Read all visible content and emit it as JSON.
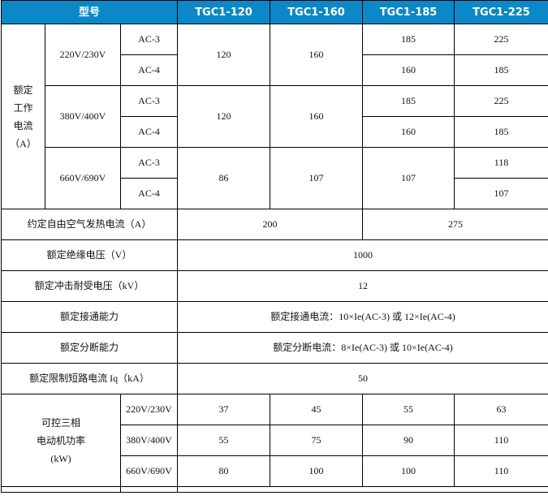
{
  "header": {
    "model_label": "型号",
    "models": [
      "TGC1-120",
      "TGC1-160",
      "TGC1-185",
      "TGC1-225"
    ]
  },
  "rated_current": {
    "label": "额定工作电流（A）",
    "label_lines": [
      "额定",
      "工作",
      "电流",
      "（A）"
    ],
    "groups": [
      {
        "voltage": "220V/230V",
        "ac3": "AC-3",
        "ac4": "AC-4",
        "m120": "120",
        "m160": "160",
        "m185": [
          "185",
          "160"
        ],
        "m225": [
          "225",
          "185"
        ]
      },
      {
        "voltage": "380V/400V",
        "ac3": "AC-3",
        "ac4": "AC-4",
        "m120": "120",
        "m160": "160",
        "m185": [
          "185",
          "160"
        ],
        "m225": [
          "225",
          "185"
        ]
      },
      {
        "voltage": "660V/690V",
        "ac3": "AC-3",
        "ac4": "AC-4",
        "m120": "86",
        "m160": "107",
        "m185": "107",
        "m225": [
          "118",
          "107"
        ]
      }
    ]
  },
  "thermal": {
    "label": "约定自由空气发热电流（A）",
    "v1": "200",
    "v2": "275"
  },
  "rows": [
    {
      "label": "额定绝缘电压（V）",
      "value": "1000"
    },
    {
      "label": "额定冲击耐受电压（kV）",
      "value": "12"
    },
    {
      "label": "额定接通能力",
      "value": "额定接通电流：10×Ie(AC-3) 或 12×Ie(AC-4)"
    },
    {
      "label": "额定分断能力",
      "value": "额定分断电流：8×Ie(AC-3) 或 10×Ie(AC-4)"
    },
    {
      "label": "额定限制短路电流 Iq（kA）",
      "value": "50"
    }
  ],
  "power": {
    "label_lines": [
      "可控三相",
      "电动机功率",
      "(kW)"
    ],
    "rows": [
      {
        "voltage": "220V/230V",
        "values": [
          "37",
          "45",
          "55",
          "63"
        ]
      },
      {
        "voltage": "380V/400V",
        "values": [
          "55",
          "75",
          "90",
          "110"
        ]
      },
      {
        "voltage": "660V/690V",
        "values": [
          "80",
          "100",
          "100",
          "110"
        ]
      }
    ]
  }
}
